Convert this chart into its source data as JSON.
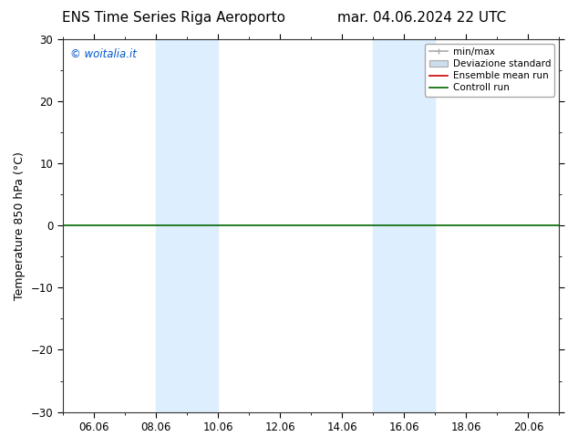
{
  "title_left": "ENS Time Series Riga Aeroporto",
  "title_right": "mar. 04.06.2024 22 UTC",
  "ylabel": "Temperature 850 hPa (°C)",
  "ylim": [
    -30,
    30
  ],
  "yticks": [
    -30,
    -20,
    -10,
    0,
    10,
    20,
    30
  ],
  "xtick_labels": [
    "06.06",
    "08.06",
    "10.06",
    "12.06",
    "14.06",
    "16.06",
    "18.06",
    "20.06"
  ],
  "xlim_dates": [
    5,
    21
  ],
  "xtick_date_positions": [
    6,
    8,
    10,
    12,
    14,
    16,
    18,
    20
  ],
  "watermark": "© woitalia.it",
  "watermark_color": "#0055cc",
  "legend_labels": [
    "min/max",
    "Deviazione standard",
    "Ensemble mean run",
    "Controll run"
  ],
  "legend_line_color": "#aaaaaa",
  "legend_box_color": "#ccddee",
  "legend_ens_color": "#cc0000",
  "legend_ctrl_color": "#006600",
  "shaded_bands": [
    [
      8,
      9
    ],
    [
      9,
      10
    ],
    [
      15,
      16
    ],
    [
      16,
      17
    ]
  ],
  "shaded_color": "#ddeeff",
  "hline_color": "#006600",
  "hline_y": 0,
  "background_color": "#ffffff",
  "title_fontsize": 11,
  "axis_fontsize": 9,
  "tick_fontsize": 8.5,
  "legend_fontsize": 7.5
}
